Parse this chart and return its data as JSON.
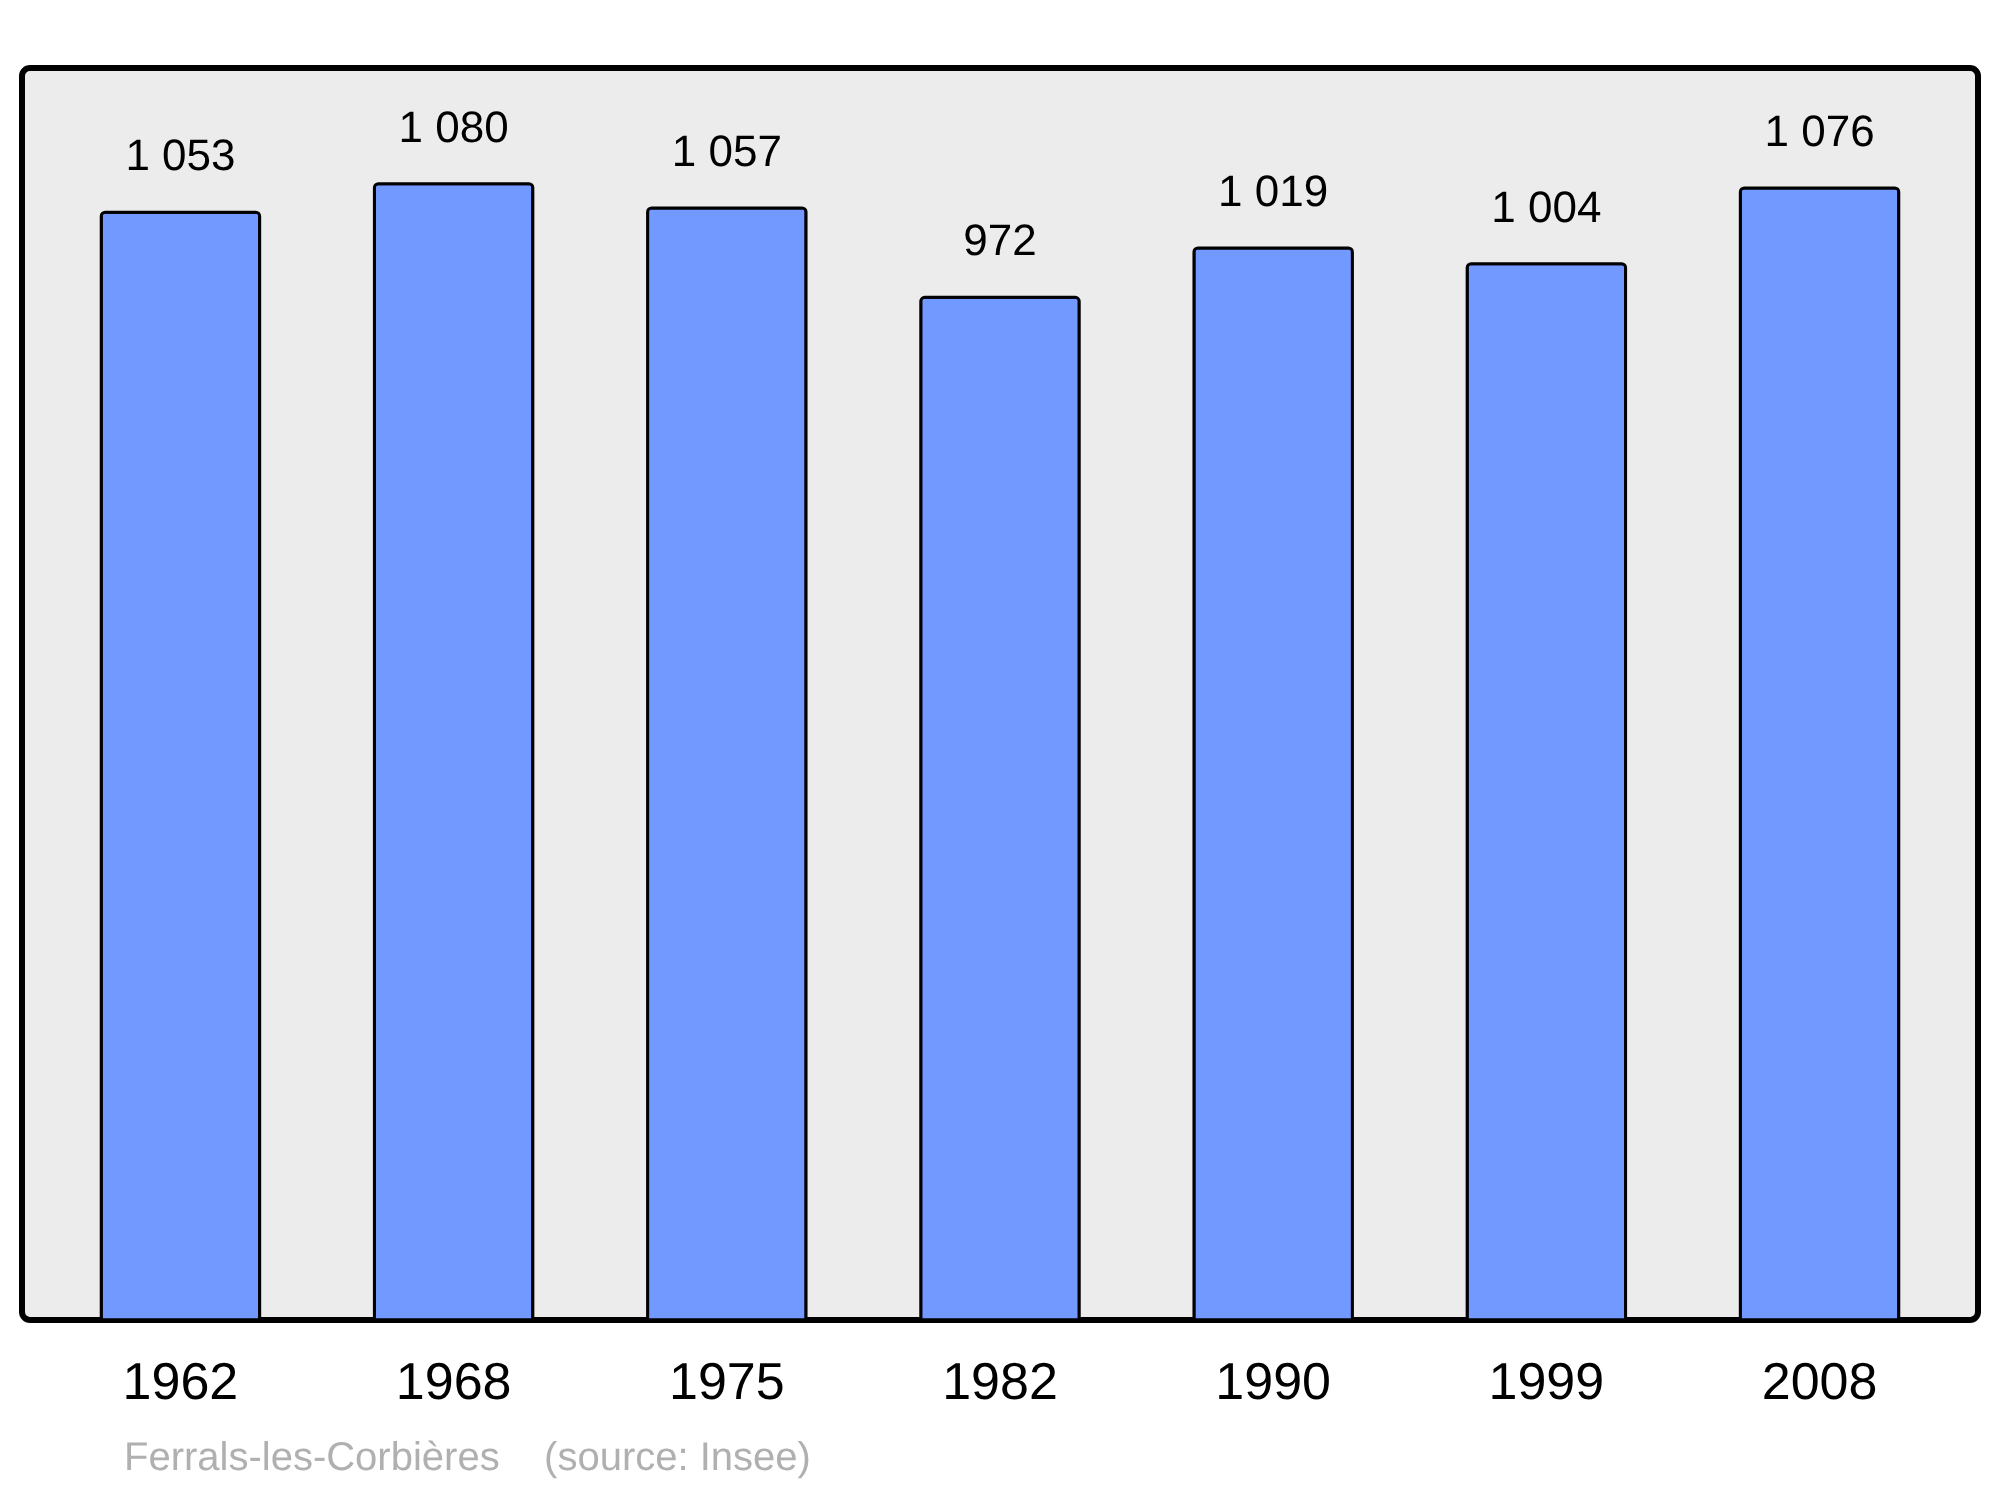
{
  "chart_data": {
    "type": "bar",
    "categories": [
      "1962",
      "1968",
      "1975",
      "1982",
      "1990",
      "1999",
      "2008"
    ],
    "values": [
      1053,
      1080,
      1057,
      972,
      1019,
      1004,
      1076
    ],
    "value_labels": [
      "1 053",
      "1 080",
      "1 057",
      "972",
      "1 019",
      "1 004",
      "1 076"
    ],
    "color": "#7299ff",
    "ylim": [
      0,
      1190
    ],
    "grid": false,
    "annotations": [
      "Ferrals-les-Corbières",
      "(source: Insee)"
    ]
  }
}
